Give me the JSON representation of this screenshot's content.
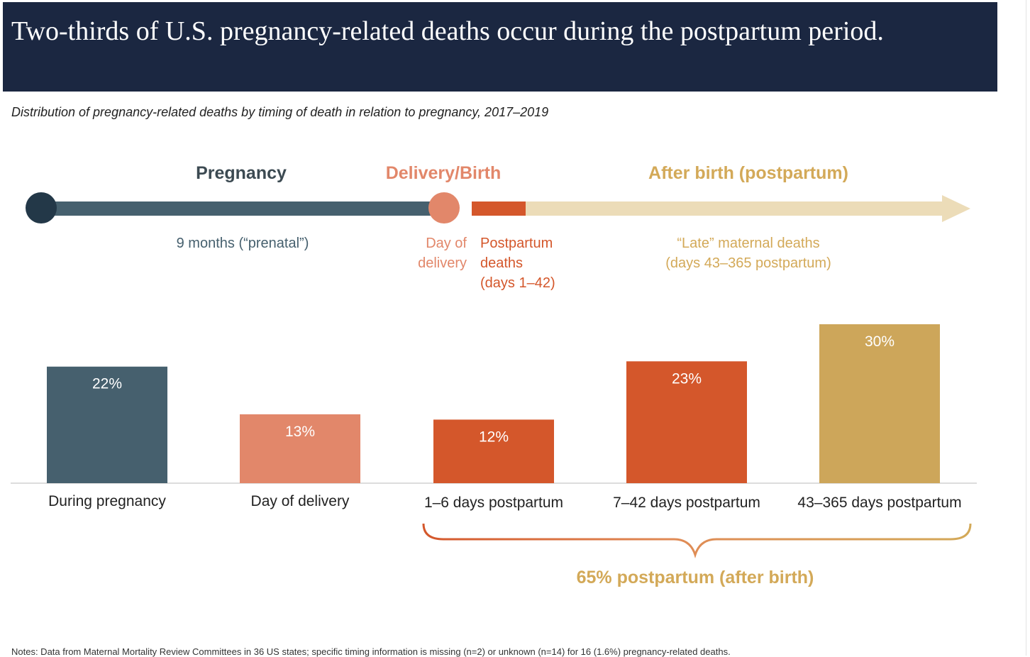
{
  "header": {
    "title": "Two-thirds of U.S. pregnancy-related deaths occur during the postpartum period.",
    "subtitle": "Distribution of pregnancy-related deaths by timing of death in relation to pregnancy, 2017–2019"
  },
  "timeline": {
    "phases": {
      "pregnancy": "Pregnancy",
      "delivery": "Delivery/Birth",
      "after": "After birth (postpartum)"
    },
    "descriptions": {
      "prenatal": "9 months (“prenatal”)",
      "day_of": "Day of",
      "delivery_word": "delivery",
      "postpartum": "Postpartum",
      "deaths": "deaths",
      "days_range": "(days 1–42)",
      "late": "“Late” maternal deaths",
      "late_range": "(days 43–365 postpartum)"
    }
  },
  "chart_data": {
    "type": "bar",
    "title": "Distribution of pregnancy-related deaths by timing of death in relation to pregnancy, 2017–2019",
    "categories": [
      "During pregnancy",
      "Day of delivery",
      "1–6 days postpartum",
      "7–42 days postpartum",
      "43–365 days postpartum"
    ],
    "values": [
      22,
      13,
      12,
      23,
      30
    ],
    "value_labels": [
      "22%",
      "13%",
      "12%",
      "23%",
      "30%"
    ],
    "colors": [
      "#46606e",
      "#e2876a",
      "#d4572b",
      "#d4572b",
      "#cda65a"
    ],
    "ylim": [
      0,
      30
    ],
    "xlabel": "",
    "ylabel": "",
    "grid": false
  },
  "summary": {
    "postpartum_total": "65% postpartum (after birth)"
  },
  "notes": "Notes: Data from Maternal Mortality Review Committees in 36 US states; specific timing information is missing (n=2) or unknown (n=14) for 16 (1.6%) pregnancy-related deaths."
}
